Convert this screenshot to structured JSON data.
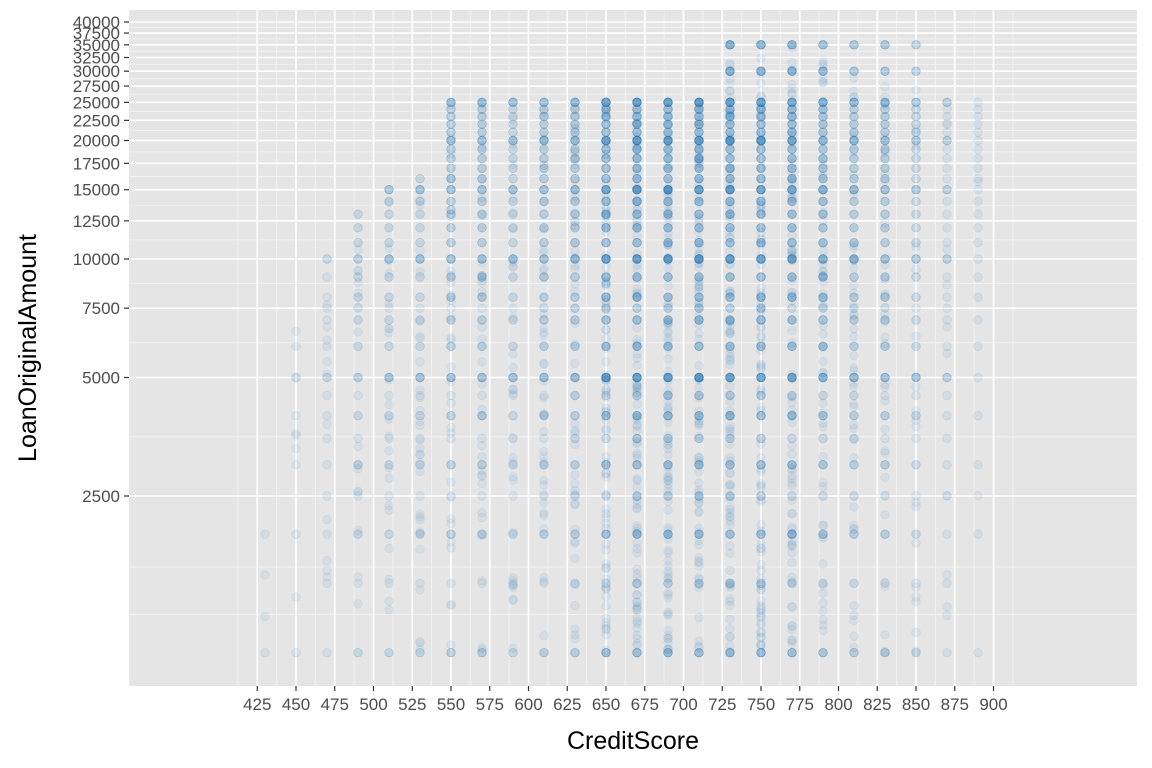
{
  "chart_data": {
    "type": "scatter",
    "title": "",
    "xlabel": "CreditScore",
    "ylabel": "LoanOriginalAmount",
    "x_scale": "linear",
    "y_scale": "log10",
    "xlim": [
      405,
      920
    ],
    "ylim": [
      1000,
      40000
    ],
    "x_ticks": [
      425,
      450,
      475,
      500,
      525,
      550,
      575,
      600,
      625,
      650,
      675,
      700,
      725,
      750,
      775,
      800,
      825,
      850,
      875,
      900
    ],
    "x_tick_labels": [
      "425",
      "450",
      "475",
      "500",
      "525",
      "550",
      "575",
      "600",
      "625",
      "650",
      "675",
      "700",
      "725",
      "750",
      "775",
      "800",
      "825",
      "850",
      "875",
      "900"
    ],
    "y_ticks": [
      2500,
      5000,
      7500,
      10000,
      12500,
      15000,
      17500,
      20000,
      22500,
      25000,
      27500,
      30000,
      32500,
      35000,
      37500,
      40000
    ],
    "y_tick_labels": [
      "2500",
      "5000",
      "7500",
      "10000",
      "12500",
      "15000",
      "17500",
      "20000",
      "22500",
      "25000",
      "27500",
      "30000",
      "32500",
      "35000",
      "37500",
      "40000"
    ],
    "grid": true,
    "legend": "none",
    "colors": {
      "panel": "#e5e5e5",
      "grid": "#ffffff",
      "point": "#1f6eb8"
    },
    "point_alpha": 0.08,
    "columns": [
      {
        "x": 430,
        "density": 0.2,
        "max": 2000,
        "spread": 0.2
      },
      {
        "x": 450,
        "density": 0.3,
        "max": 6600,
        "spread": 0.3
      },
      {
        "x": 470,
        "density": 0.4,
        "max": 10000,
        "spread": 0.4
      },
      {
        "x": 490,
        "density": 0.55,
        "max": 13000,
        "spread": 0.45
      },
      {
        "x": 510,
        "density": 0.7,
        "max": 15000,
        "spread": 0.5
      },
      {
        "x": 530,
        "density": 0.8,
        "max": 16000,
        "spread": 0.6
      },
      {
        "x": 550,
        "density": 0.85,
        "max": 25000,
        "spread": 0.6
      },
      {
        "x": 570,
        "density": 0.85,
        "max": 25000,
        "spread": 0.6
      },
      {
        "x": 590,
        "density": 0.8,
        "max": 25000,
        "spread": 0.6
      },
      {
        "x": 610,
        "density": 0.9,
        "max": 25000,
        "spread": 0.7
      },
      {
        "x": 630,
        "density": 1.0,
        "max": 25000,
        "spread": 0.8
      },
      {
        "x": 650,
        "density": 1.6,
        "max": 25000,
        "spread": 0.9
      },
      {
        "x": 670,
        "density": 1.8,
        "max": 25000,
        "spread": 0.9
      },
      {
        "x": 690,
        "density": 1.8,
        "max": 25000,
        "spread": 0.9
      },
      {
        "x": 710,
        "density": 1.8,
        "max": 25000,
        "spread": 0.9
      },
      {
        "x": 730,
        "density": 1.8,
        "max": 35000,
        "spread": 0.9
      },
      {
        "x": 750,
        "density": 1.7,
        "max": 35000,
        "spread": 0.9
      },
      {
        "x": 770,
        "density": 1.5,
        "max": 35000,
        "spread": 0.85
      },
      {
        "x": 790,
        "density": 1.2,
        "max": 35000,
        "spread": 0.8
      },
      {
        "x": 810,
        "density": 1.0,
        "max": 35000,
        "spread": 0.7
      },
      {
        "x": 830,
        "density": 0.9,
        "max": 35000,
        "spread": 0.6
      },
      {
        "x": 850,
        "density": 0.65,
        "max": 35000,
        "spread": 0.5
      },
      {
        "x": 870,
        "density": 0.45,
        "max": 25000,
        "spread": 0.35
      },
      {
        "x": 890,
        "density": 0.2,
        "max": 25000,
        "spread": 0.2
      }
    ],
    "common_amounts": [
      1000,
      1500,
      2000,
      2500,
      3000,
      3500,
      4000,
      4500,
      5000,
      6000,
      7000,
      7500,
      8000,
      9000,
      10000,
      11000,
      12000,
      13000,
      14000,
      15000,
      16000,
      17000,
      18000,
      19000,
      20000,
      21000,
      22000,
      23000,
      24000,
      25000,
      30000,
      35000
    ]
  }
}
